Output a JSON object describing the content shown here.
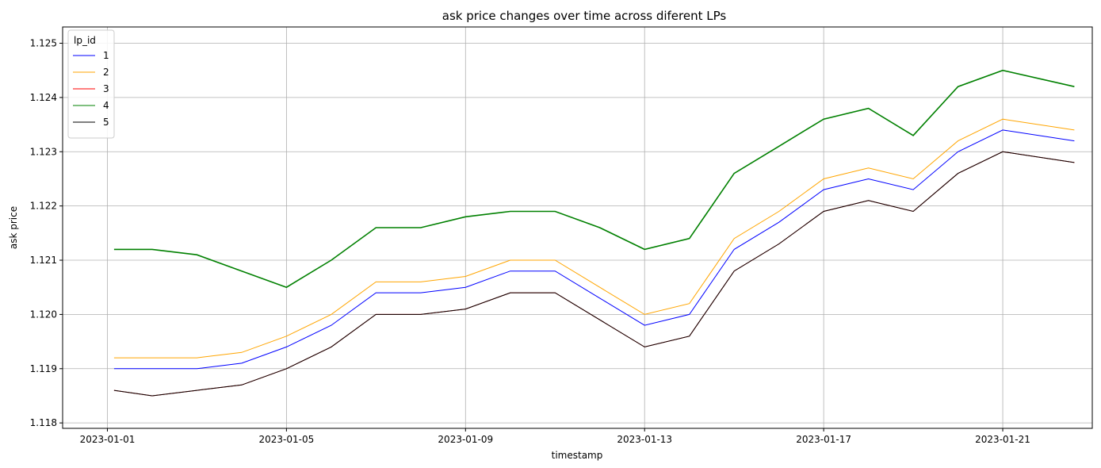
{
  "chart_data": {
    "type": "line",
    "title": "ask price changes over time across diferent LPs",
    "xlabel": "timestamp",
    "ylabel": "ask price",
    "x_ticks": [
      "2023-01-01",
      "2023-01-05",
      "2023-01-09",
      "2023-01-13",
      "2023-01-17",
      "2023-01-21"
    ],
    "y_ticks": [
      "1.118",
      "1.119",
      "1.120",
      "1.121",
      "1.122",
      "1.123",
      "1.124",
      "1.125"
    ],
    "xlim": [
      "2022-12-31",
      "2023-01-23"
    ],
    "ylim": [
      1.1179,
      1.1253
    ],
    "grid": true,
    "legend": {
      "title": "lp_id",
      "placement": "top-left"
    },
    "x": [
      "2023-01-01",
      "2023-01-02",
      "2023-01-03",
      "2023-01-04",
      "2023-01-05",
      "2023-01-06",
      "2023-01-07",
      "2023-01-08",
      "2023-01-09",
      "2023-01-10",
      "2023-01-11",
      "2023-01-12",
      "2023-01-13",
      "2023-01-14",
      "2023-01-15",
      "2023-01-16",
      "2023-01-17",
      "2023-01-18",
      "2023-01-19",
      "2023-01-20",
      "2023-01-21",
      "2023-01-22"
    ],
    "series": [
      {
        "name": "1",
        "color": "#0000ff",
        "values": [
          1.119,
          1.119,
          1.119,
          1.1191,
          1.1194,
          1.1198,
          1.1204,
          1.1204,
          1.1205,
          1.1208,
          1.1208,
          1.1203,
          1.1198,
          1.12,
          1.1212,
          1.1217,
          1.1223,
          1.1225,
          1.1223,
          1.123,
          1.1234,
          1.1232
        ]
      },
      {
        "name": "2",
        "color": "#ffa500",
        "values": [
          1.1192,
          1.1192,
          1.1192,
          1.1193,
          1.1196,
          1.12,
          1.1206,
          1.1206,
          1.1207,
          1.121,
          1.121,
          1.1205,
          1.12,
          1.1202,
          1.1214,
          1.1219,
          1.1225,
          1.1227,
          1.1225,
          1.1232,
          1.1236,
          1.1234
        ]
      },
      {
        "name": "3",
        "color": "#ff0000",
        "values": [
          1.1186,
          1.1185,
          1.1186,
          1.1187,
          1.119,
          1.1194,
          1.12,
          1.12,
          1.1201,
          1.1204,
          1.1204,
          1.1199,
          1.1194,
          1.1196,
          1.1208,
          1.1213,
          1.1219,
          1.1221,
          1.1219,
          1.1226,
          1.123,
          1.1228
        ]
      },
      {
        "name": "4",
        "color": "#008000",
        "values": [
          1.1212,
          1.1212,
          1.1211,
          1.1208,
          1.1205,
          1.121,
          1.1216,
          1.1216,
          1.1218,
          1.1219,
          1.1219,
          1.1216,
          1.1212,
          1.1214,
          1.1226,
          1.1231,
          1.1236,
          1.1238,
          1.1233,
          1.1242,
          1.1245,
          1.1242
        ]
      },
      {
        "name": "5",
        "color": "#000000",
        "values": [
          1.1186,
          1.1185,
          1.1186,
          1.1187,
          1.119,
          1.1194,
          1.12,
          1.12,
          1.1201,
          1.1204,
          1.1204,
          1.1199,
          1.1194,
          1.1196,
          1.1208,
          1.1213,
          1.1219,
          1.1221,
          1.1219,
          1.1226,
          1.123,
          1.1228
        ]
      }
    ]
  }
}
